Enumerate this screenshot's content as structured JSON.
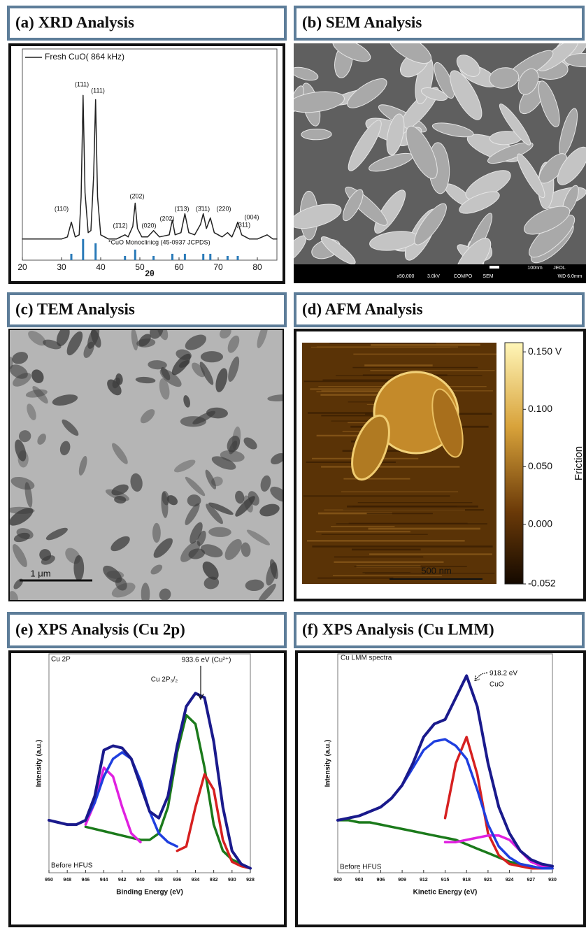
{
  "panels": [
    {
      "title": "(a) XRD Analysis"
    },
    {
      "title": "(b) SEM Analysis"
    },
    {
      "title": "(c) TEM Analysis"
    },
    {
      "title": "(d) AFM Analysis"
    },
    {
      "title": "(e) XPS Analysis (Cu 2p)"
    },
    {
      "title": "(f) XPS Analysis (Cu LMM)"
    }
  ],
  "sem": {
    "labels": [
      "x50,000",
      "3.0kV",
      "COMPO",
      "SEM",
      "100nm",
      "JEOL",
      "WD 6.0mm"
    ]
  },
  "tem": {
    "scale_bar": "1 μm"
  },
  "afm": {
    "scale_bar": "500 nm"
  },
  "chart_data": [
    {
      "type": "line",
      "xlabel": "2θ",
      "xlim": [
        20,
        85
      ],
      "xticks": [
        20,
        30,
        40,
        50,
        60,
        70,
        80
      ],
      "ylim": [
        0,
        100
      ],
      "series": [
        {
          "name": "Fresh CuO( 864 kHz)",
          "color": "#222222",
          "x": [
            20,
            25,
            30,
            31.5,
            32.5,
            33.5,
            34.5,
            35.0,
            35.5,
            36.0,
            36.8,
            37.5,
            38.2,
            38.7,
            39.2,
            40,
            42,
            44,
            46.2,
            47,
            48.2,
            48.8,
            49.4,
            50.5,
            52,
            53.5,
            55,
            57.5,
            58.3,
            59,
            60.5,
            61.5,
            62.5,
            64,
            65.5,
            66.2,
            67,
            68,
            69,
            71,
            72.4,
            73.5,
            74.2,
            75,
            76,
            78,
            80,
            82.5,
            84,
            85
          ],
          "values": [
            10,
            10,
            10,
            11,
            18,
            11,
            12,
            30,
            78,
            32,
            13,
            14,
            40,
            76,
            30,
            12,
            10,
            10,
            12,
            11,
            16,
            27,
            15,
            11,
            11,
            14,
            11,
            12,
            19,
            12,
            13,
            22,
            13,
            12,
            17,
            22,
            15,
            20,
            13,
            11,
            13,
            11,
            14,
            18,
            12,
            10,
            10,
            12,
            10,
            10
          ]
        },
        {
          "name": "*CuO Monoclinicg (45-0937 JCPDS)",
          "type": "stick",
          "color": "#2a7ab8",
          "x": [
            32.5,
            35.5,
            38.7,
            46.2,
            48.8,
            53.5,
            58.3,
            61.5,
            66.2,
            68,
            72.4,
            75
          ],
          "values": [
            3,
            10,
            8,
            2,
            5,
            2,
            3,
            3,
            3,
            3,
            2,
            2
          ]
        }
      ],
      "annotations": [
        "(110)",
        "(1̄11)",
        "(111)",
        "(1̄12)",
        "(2̄02)",
        "(020)",
        "(202)",
        "(1̄13)",
        "(3̄11)",
        "(220)",
        "(311)",
        "(004)"
      ]
    },
    {
      "type": "colorbar",
      "ylabel": "Friction",
      "ylim": [
        -0.052,
        0.158
      ],
      "yticks": [
        {
          "value": 0.15,
          "label": "0.150 V"
        },
        {
          "value": 0.1,
          "label": "0.100"
        },
        {
          "value": 0.05,
          "label": "0.050"
        },
        {
          "value": 0,
          "label": "0.000"
        },
        -0.052
      ]
    },
    {
      "type": "line",
      "xlabel": "Binding Energy (eV)",
      "ylabel": "Intensity (a.u.)",
      "xlim": [
        950,
        928
      ],
      "xticks": [
        950,
        948,
        946,
        944,
        942,
        940,
        938,
        936,
        934,
        932,
        930,
        928
      ],
      "ylim": [
        0,
        100
      ],
      "x": [
        950,
        949,
        948,
        947,
        946,
        945,
        944,
        943,
        942,
        941,
        940,
        939,
        938,
        937,
        936,
        935,
        934,
        933,
        932,
        931,
        930,
        929,
        928
      ],
      "series": [
        {
          "color": "#1b7a1b",
          "values": [
            null,
            null,
            null,
            null,
            21,
            20,
            19,
            18,
            17,
            16,
            15,
            15,
            18,
            30,
            55,
            72,
            68,
            48,
            22,
            10,
            6,
            4,
            2
          ]
        },
        {
          "color": "#d62020",
          "values": [
            null,
            null,
            null,
            null,
            null,
            null,
            null,
            null,
            null,
            null,
            null,
            null,
            null,
            null,
            10,
            12,
            30,
            45,
            38,
            15,
            5,
            3,
            2
          ]
        },
        {
          "color": "#e020e0",
          "values": [
            null,
            null,
            null,
            null,
            22,
            32,
            48,
            44,
            30,
            18,
            14,
            null,
            null,
            null,
            null,
            null,
            null,
            null,
            null,
            null,
            null,
            null,
            null
          ]
        },
        {
          "color": "#1f3fdf",
          "values": [
            null,
            null,
            null,
            22,
            24,
            32,
            44,
            52,
            55,
            52,
            42,
            28,
            18,
            14,
            12,
            null,
            null,
            null,
            null,
            null,
            null,
            null,
            null
          ]
        },
        {
          "color": "#1a1a8c",
          "values": [
            24,
            23,
            22,
            22,
            24,
            35,
            56,
            58,
            57,
            52,
            40,
            28,
            25,
            35,
            58,
            76,
            82,
            80,
            60,
            30,
            10,
            4,
            2
          ]
        }
      ],
      "annotations": [
        "Cu 2P",
        "933.6 eV (Cu²⁺)",
        "Cu 2P₃/₂",
        "Before HFUS"
      ]
    },
    {
      "type": "line",
      "xlabel": "Kinetic Energy (eV)",
      "ylabel": "Intensity (a.u.)",
      "xlim": [
        900,
        930
      ],
      "xticks": [
        900,
        903,
        906,
        909,
        912,
        915,
        918,
        921,
        924,
        927,
        930
      ],
      "ylim": [
        0,
        100
      ],
      "x": [
        900,
        901.5,
        903,
        904.5,
        906,
        907.5,
        909,
        910.5,
        912,
        913.5,
        915,
        916.5,
        918,
        919.5,
        921,
        922.5,
        924,
        925.5,
        927,
        928.5,
        930
      ],
      "series": [
        {
          "color": "#1b7a1b",
          "values": [
            24,
            24,
            23,
            23,
            22,
            21,
            20,
            19,
            18,
            17,
            16,
            15,
            13,
            11,
            9,
            7,
            5,
            4,
            3,
            2,
            2
          ]
        },
        {
          "color": "#d62020",
          "values": [
            null,
            null,
            null,
            null,
            null,
            null,
            null,
            null,
            null,
            null,
            25,
            50,
            62,
            45,
            18,
            8,
            4,
            3,
            2,
            2,
            2
          ]
        },
        {
          "color": "#e020e0",
          "values": [
            null,
            null,
            null,
            null,
            null,
            null,
            null,
            null,
            null,
            null,
            14,
            14,
            15,
            16,
            17,
            17,
            15,
            10,
            5,
            3,
            2
          ]
        },
        {
          "color": "#1f3fdf",
          "values": [
            24,
            25,
            26,
            28,
            30,
            34,
            40,
            48,
            56,
            60,
            61,
            58,
            52,
            38,
            22,
            12,
            7,
            4,
            3,
            2,
            2
          ]
        },
        {
          "color": "#1a1a8c",
          "values": [
            24,
            25,
            26,
            28,
            30,
            34,
            40,
            50,
            62,
            68,
            70,
            80,
            90,
            76,
            50,
            30,
            18,
            10,
            6,
            4,
            3
          ]
        }
      ],
      "annotations": [
        "Cu LMM spectra",
        "918.2 eV",
        "CuO",
        "Before HFUS"
      ]
    }
  ]
}
